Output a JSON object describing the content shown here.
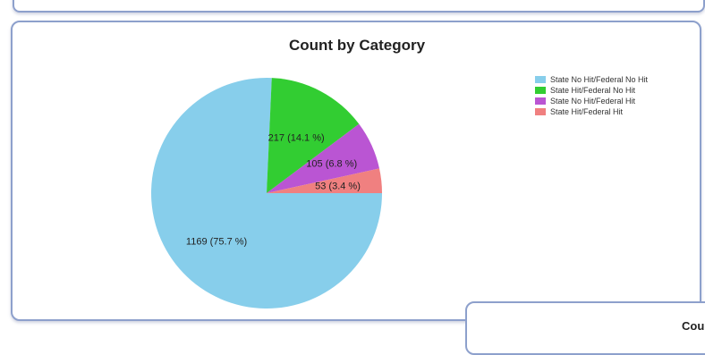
{
  "bottom_panel": {
    "title_fragment": "Cou"
  },
  "chart_data": {
    "type": "pie",
    "title": "Count by Category",
    "legend_position": "top-right",
    "slices": [
      {
        "label": "State No Hit/Federal No Hit",
        "value": 1169,
        "percent_label": "1169 (75.7 %)",
        "color": "#87ceeb"
      },
      {
        "label": "State Hit/Federal No Hit",
        "value": 217,
        "percent_label": "217 (14.1 %)",
        "color": "#32cd32"
      },
      {
        "label": "State No Hit/Federal Hit",
        "value": 105,
        "percent_label": "105 (6.8 %)",
        "color": "#ba55d3"
      },
      {
        "label": "State Hit/Federal Hit",
        "value": 53,
        "percent_label": "53 (3.4 %)",
        "color": "#f08080"
      }
    ]
  }
}
